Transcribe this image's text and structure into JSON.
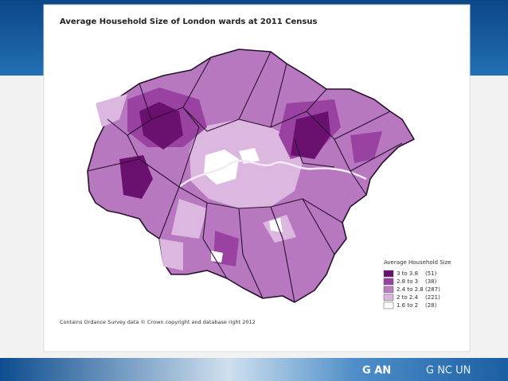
{
  "header": {
    "title": "Average Household Size of London wards at 2011 Census"
  },
  "legend": {
    "title": "Average Household Size",
    "items": [
      {
        "label": "3 to 3.8",
        "count": "(51)",
        "color": "#6a1170"
      },
      {
        "label": "2.8 to 3",
        "count": "(38)",
        "color": "#9a42a2"
      },
      {
        "label": "2.4 to 2.8",
        "count": "(287)",
        "color": "#bb7ec3"
      },
      {
        "label": "2 to 2.4",
        "count": "(221)",
        "color": "#dcb8e0"
      },
      {
        "label": "1.6 to 2",
        "count": "(28)",
        "color": "#ffffff"
      }
    ]
  },
  "source": "Contains Ordance Survey data © Crown copyright and database right 2012",
  "footer": {
    "left": "G AN",
    "right": "G NC UN"
  }
}
